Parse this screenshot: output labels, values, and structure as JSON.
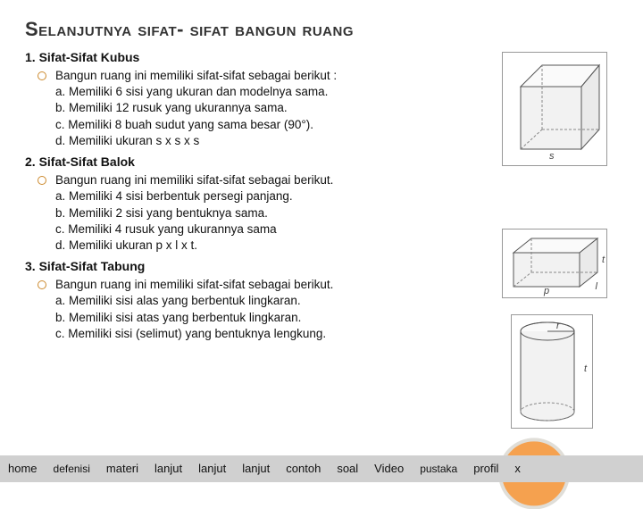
{
  "title": "Selanjutnya sifat- sifat bangun ruang",
  "sections": [
    {
      "heading": "1. Sifat-Sifat Kubus",
      "intro": "Bangun ruang  ini memiliki sifat-sifat sebagai berikut :",
      "items": [
        "a. Memiliki 6 sisi yang ukuran dan modelnya sama.",
        "b. Memiliki 12 rusuk yang ukurannya sama.",
        "c. Memiliki 8 buah sudut yang sama besar (90°).",
        "d. Memiliki ukuran s x s x s"
      ]
    },
    {
      "heading": "2. Sifat-Sifat Balok",
      "intro": "Bangun ruang  ini memiliki sifat-sifat sebagai berikut.",
      "items": [
        "a. Memiliki 4 sisi  berbentuk persegi panjang.",
        "b. Memiliki 2 sisi yang bentuknya sama.",
        "c. Memiliki 4 rusuk yang ukurannya sama",
        "d. Memiliki ukuran p x l x t."
      ]
    },
    {
      "heading": "3. Sifat-Sifat Tabung",
      "intro": "Bangun ruang  ini memiliki sifat-sifat sebagai berikut.",
      "items": [
        "a. Memiliki sisi alas yang berbentuk lingkaran.",
        "b. Memiliki sisi atas yang berbentuk lingkaran.",
        "c. Memiliki  sisi (selimut) yang bentuknya lengkung."
      ]
    }
  ],
  "nav": [
    "home",
    "defenisi",
    "materi",
    "lanjut",
    "lanjut",
    "lanjut",
    "contoh",
    "soal",
    "Video",
    "pustaka",
    "profil",
    "x"
  ],
  "figures": {
    "cube_label": "s",
    "block_labels": {
      "p": "p",
      "l": "l",
      "t": "t"
    },
    "cyl_labels": {
      "r": "r",
      "t": "t"
    }
  },
  "colors": {
    "bullet_ring": "#cc8a2e",
    "nav_bg": "#d0d0d0",
    "circle_bg": "#f5a14f",
    "circle_ring": "#e0ded8",
    "fig_fill": "#f2f2f2",
    "fig_stroke": "#555555"
  }
}
